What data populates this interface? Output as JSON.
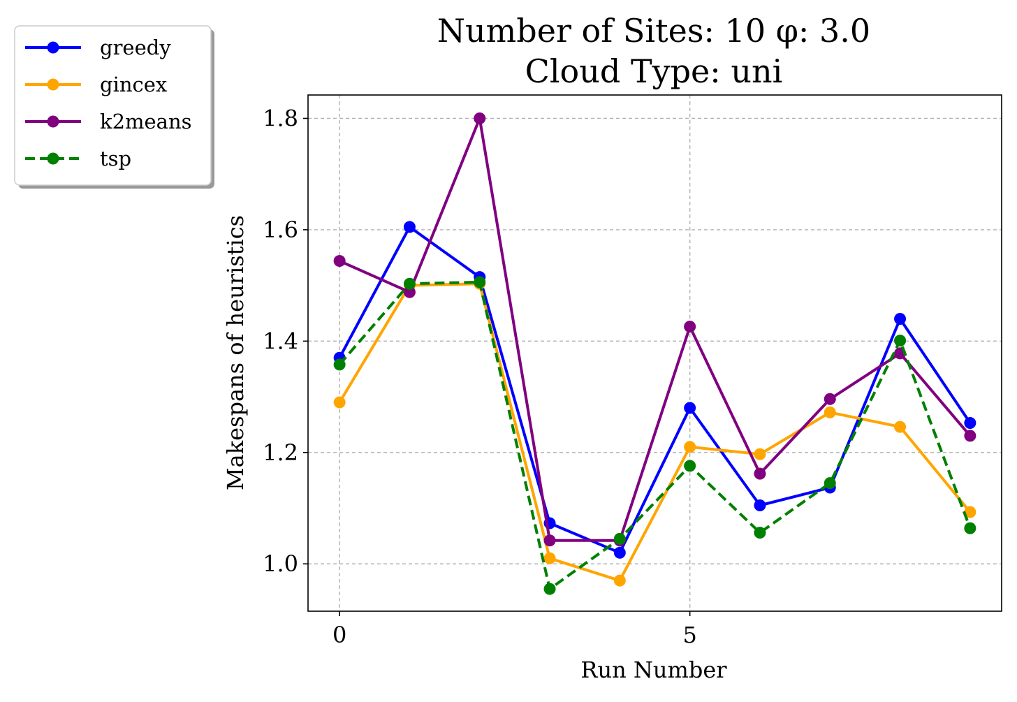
{
  "chart_data": {
    "type": "line",
    "title_line1": "Number of Sites: 10 φ: 3.0",
    "title_line2": "Cloud Type: uni",
    "xlabel": "Run Number",
    "ylabel": "Makespans of heuristics",
    "x": [
      0,
      1,
      2,
      3,
      4,
      5,
      6,
      7,
      8,
      9
    ],
    "xlim": [
      -0.45,
      9.45
    ],
    "ylim": [
      0.915,
      1.842
    ],
    "xticks": [
      0,
      5
    ],
    "xtick_labels": [
      "0",
      "5"
    ],
    "yticks": [
      1.0,
      1.2,
      1.4,
      1.6,
      1.8
    ],
    "ytick_labels": [
      "1.0",
      "1.2",
      "1.4",
      "1.6",
      "1.8"
    ],
    "grid": true,
    "legend_position": "outside-top-left",
    "series": [
      {
        "name": "greedy",
        "color": "#0000ff",
        "dash": "solid",
        "values": [
          1.37,
          1.605,
          1.515,
          1.073,
          1.02,
          1.28,
          1.105,
          1.137,
          1.44,
          1.253
        ]
      },
      {
        "name": "gincex",
        "color": "#ffa500",
        "dash": "solid",
        "values": [
          1.29,
          1.5,
          1.503,
          1.01,
          0.97,
          1.21,
          1.197,
          1.272,
          1.246,
          1.093
        ]
      },
      {
        "name": "k2means",
        "color": "#800080",
        "dash": "solid",
        "values": [
          1.544,
          1.488,
          1.8,
          1.042,
          1.042,
          1.426,
          1.162,
          1.296,
          1.378,
          1.23
        ]
      },
      {
        "name": "tsp",
        "color": "#008000",
        "dash": "dashed",
        "values": [
          1.358,
          1.503,
          1.506,
          0.955,
          1.045,
          1.176,
          1.056,
          1.145,
          1.401,
          1.064
        ]
      }
    ]
  }
}
